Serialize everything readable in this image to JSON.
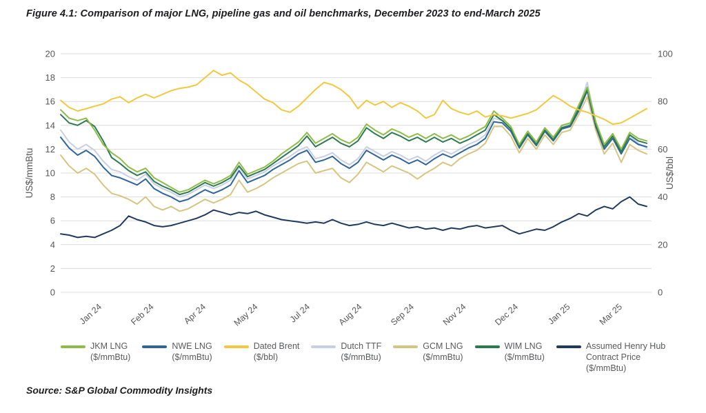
{
  "figure": {
    "title": "Figure 4.1: Comparison of major LNG, pipeline gas and oil benchmarks, December 2023 to end-March 2025",
    "source": "Source: S&P Global Commodity Insights"
  },
  "chart_data": {
    "type": "line",
    "title": "Figure 4.1: Comparison of major LNG, pipeline gas and oil benchmarks, December 2023 to end-March 2025",
    "grid": true,
    "legend_position": "bottom",
    "x_tick_labels": [
      "Jan 24",
      "Feb 24",
      "Apr 24",
      "May 24",
      "Jul 24",
      "Aug 24",
      "Sep 24",
      "Nov 24",
      "Dec 24",
      "Jan 25",
      "Mar 25"
    ],
    "y_axis_left": {
      "title": "US$/mmBtu",
      "min": 0,
      "max": 20,
      "step": 2
    },
    "y_axis_right": {
      "title": "US$/bbl",
      "min": 0,
      "max": 100,
      "step": 20
    },
    "series": [
      {
        "name": "JKM LNG",
        "unit": "($/mmBtu)",
        "axis": "left",
        "color": "#8dbb4a",
        "values": [
          15.3,
          14.6,
          14.4,
          14.6,
          13.6,
          12.4,
          11.7,
          11.2,
          10.5,
          10.1,
          10.4,
          9.6,
          9.2,
          8.8,
          8.4,
          8.6,
          9.0,
          9.4,
          9.1,
          9.4,
          9.8,
          10.9,
          9.9,
          10.2,
          10.5,
          11.0,
          11.6,
          12.1,
          12.6,
          13.4,
          12.5,
          12.9,
          13.3,
          12.8,
          12.5,
          13.0,
          14.1,
          13.6,
          13.2,
          13.7,
          13.4,
          13.0,
          13.3,
          12.9,
          13.3,
          12.9,
          13.2,
          12.8,
          13.1,
          13.5,
          13.9,
          15.2,
          14.6,
          13.9,
          12.4,
          13.5,
          12.6,
          13.8,
          13.0,
          14.0,
          14.2,
          15.7,
          17.2,
          14.3,
          12.4,
          13.3,
          12.0,
          13.4,
          12.9,
          12.7
        ]
      },
      {
        "name": "NWE LNG",
        "unit": "($/mmBtu)",
        "axis": "left",
        "color": "#2f659b",
        "values": [
          13.0,
          12.1,
          11.5,
          11.9,
          11.4,
          10.5,
          9.8,
          9.6,
          9.3,
          9.0,
          9.5,
          8.7,
          8.3,
          8.0,
          7.6,
          7.8,
          8.2,
          8.6,
          8.3,
          8.6,
          9.0,
          10.2,
          9.2,
          9.5,
          9.8,
          10.3,
          10.7,
          11.1,
          11.6,
          11.9,
          10.9,
          11.1,
          11.4,
          10.8,
          10.4,
          10.9,
          11.9,
          11.5,
          11.1,
          11.5,
          11.2,
          10.8,
          11.1,
          10.7,
          11.2,
          11.6,
          11.3,
          11.7,
          12.1,
          12.4,
          12.9,
          14.3,
          14.2,
          13.5,
          12.1,
          13.2,
          12.3,
          13.5,
          12.7,
          13.7,
          13.9,
          15.2,
          16.9,
          13.9,
          12.0,
          12.9,
          11.6,
          12.9,
          12.4,
          12.2
        ]
      },
      {
        "name": "Dated Brent",
        "unit": "($/bbl)",
        "axis": "right",
        "color": "#f2c83e",
        "values": [
          80.5,
          77.5,
          76,
          77,
          78,
          79,
          81,
          82,
          79.5,
          81.5,
          83,
          81.5,
          83,
          84.5,
          85.5,
          86,
          87,
          90,
          93,
          91,
          92,
          89,
          87,
          84,
          81,
          79.5,
          76.5,
          75.5,
          78,
          81.5,
          85,
          88,
          87,
          85,
          82,
          77,
          80.5,
          78.5,
          80,
          77.5,
          79.5,
          78,
          76,
          73,
          74.5,
          80.5,
          77,
          75.5,
          74.5,
          76,
          73.5,
          74.5,
          74,
          73,
          74,
          75,
          76.5,
          79.5,
          82.5,
          80.5,
          78,
          76.5,
          75.5,
          74,
          72.5,
          70.5,
          71,
          73,
          75,
          77
        ]
      },
      {
        "name": "Dutch TTF",
        "unit": "($/mmBtu)",
        "axis": "left",
        "color": "#c7cfe6",
        "values": [
          13.6,
          12.6,
          12.0,
          12.4,
          11.9,
          11.0,
          10.3,
          10.1,
          9.7,
          9.4,
          9.9,
          9.1,
          8.7,
          8.4,
          8.0,
          8.2,
          8.6,
          9.0,
          8.7,
          9.0,
          9.4,
          10.5,
          9.5,
          9.8,
          10.1,
          10.6,
          11.0,
          11.4,
          11.9,
          12.2,
          11.2,
          11.4,
          11.7,
          11.1,
          10.7,
          11.2,
          12.2,
          11.8,
          11.4,
          11.8,
          11.5,
          11.1,
          11.4,
          11.0,
          11.5,
          11.9,
          11.6,
          12.0,
          12.4,
          12.7,
          13.2,
          14.6,
          14.4,
          13.7,
          12.3,
          13.4,
          12.5,
          13.7,
          12.9,
          13.9,
          14.1,
          15.5,
          17.6,
          14.2,
          12.2,
          13.1,
          11.8,
          13.1,
          12.5,
          12.1
        ]
      },
      {
        "name": "GCM LNG",
        "unit": "($/mmBtu)",
        "axis": "left",
        "color": "#d5c581",
        "values": [
          11.5,
          10.6,
          10.0,
          10.4,
          9.9,
          9.0,
          8.3,
          8.1,
          7.8,
          7.4,
          8.0,
          7.2,
          6.9,
          7.2,
          6.8,
          7.0,
          7.4,
          7.8,
          7.5,
          7.8,
          8.2,
          9.4,
          8.4,
          8.7,
          9.1,
          9.6,
          10.0,
          10.4,
          10.8,
          11.0,
          10.0,
          10.2,
          10.4,
          9.6,
          9.2,
          9.9,
          10.9,
          10.5,
          10.1,
          10.6,
          10.3,
          10.0,
          9.5,
          10.0,
          10.4,
          10.9,
          10.6,
          11.2,
          11.6,
          11.9,
          12.5,
          13.9,
          13.9,
          13.1,
          11.7,
          12.9,
          12.0,
          13.2,
          12.4,
          13.4,
          13.6,
          14.9,
          16.4,
          13.6,
          11.6,
          12.5,
          10.9,
          12.4,
          11.9,
          11.6
        ]
      },
      {
        "name": "WIM LNG",
        "unit": "($/mmBtu)",
        "axis": "left",
        "color": "#2b7b4e",
        "values": [
          14.9,
          14.2,
          14.0,
          14.4,
          13.9,
          12.7,
          11.3,
          10.8,
          10.2,
          9.8,
          10.1,
          9.3,
          8.9,
          8.6,
          8.2,
          8.4,
          8.8,
          9.2,
          8.9,
          9.2,
          9.6,
          10.6,
          9.7,
          10.0,
          10.3,
          10.8,
          11.3,
          11.8,
          12.3,
          13.1,
          12.2,
          12.6,
          13.0,
          12.5,
          12.2,
          12.7,
          13.8,
          13.3,
          12.9,
          13.4,
          13.1,
          12.7,
          13.0,
          12.6,
          13.0,
          12.6,
          12.9,
          12.5,
          12.8,
          13.2,
          13.6,
          14.9,
          14.4,
          13.7,
          12.2,
          13.3,
          12.4,
          13.6,
          12.8,
          13.8,
          14.0,
          15.4,
          17.0,
          14.1,
          12.2,
          13.1,
          11.8,
          13.2,
          12.7,
          12.5
        ]
      },
      {
        "name": "Assumed Henry Hub Contract Price",
        "unit": "($/mmBtu)",
        "axis": "left",
        "color": "#1f3a5f",
        "values": [
          4.9,
          4.8,
          4.6,
          4.7,
          4.6,
          4.9,
          5.2,
          5.6,
          6.4,
          6.1,
          5.9,
          5.6,
          5.5,
          5.6,
          5.8,
          6.0,
          6.2,
          6.5,
          6.9,
          6.7,
          6.5,
          6.7,
          6.6,
          6.8,
          6.5,
          6.3,
          6.1,
          6.0,
          5.9,
          5.8,
          5.9,
          5.8,
          6.1,
          5.8,
          5.6,
          5.7,
          5.9,
          5.7,
          5.6,
          5.8,
          5.6,
          5.4,
          5.5,
          5.3,
          5.4,
          5.2,
          5.4,
          5.3,
          5.5,
          5.6,
          5.4,
          5.5,
          5.6,
          5.2,
          4.9,
          5.1,
          5.3,
          5.2,
          5.5,
          5.9,
          6.2,
          6.6,
          6.4,
          6.9,
          7.2,
          7.0,
          7.6,
          8.0,
          7.4,
          7.2
        ]
      }
    ]
  }
}
